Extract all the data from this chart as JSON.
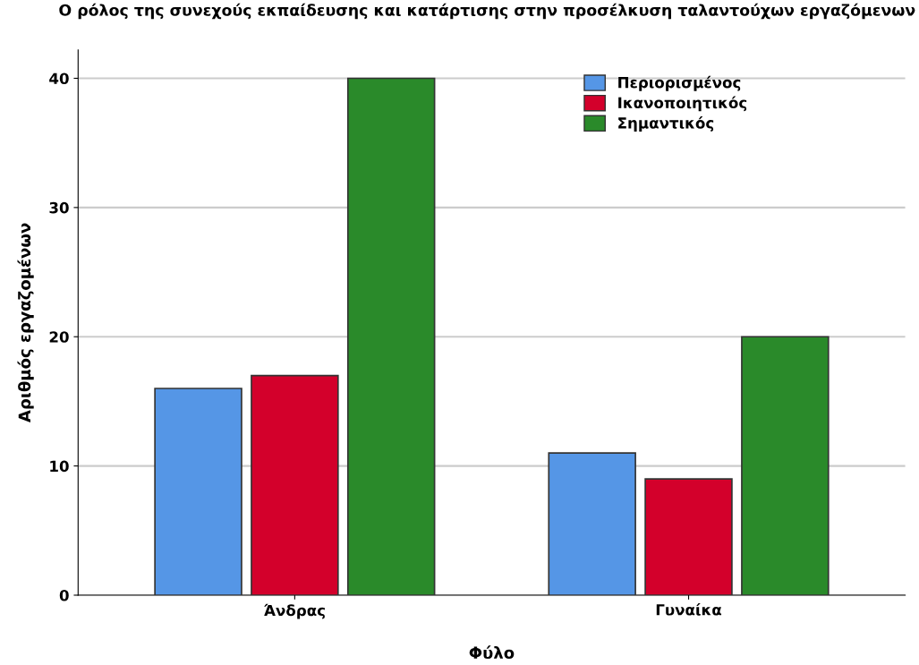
{
  "chart_data": {
    "type": "bar",
    "title": "Ο ρόλος της συνεχούς εκπαίδευσης και κατάρτισης στην προσέλκυση ταλαντούχων εργαζόμενων",
    "xlabel": "Φύλο",
    "ylabel": "Αριθμός εργαζομένων",
    "categories": [
      "Άνδρας",
      "Γυναίκα"
    ],
    "series": [
      {
        "name": "Περιορισμένος",
        "color": "#5596e6",
        "values": [
          16,
          11
        ]
      },
      {
        "name": "Ικανοποιητικός",
        "color": "#d3002b",
        "values": [
          17,
          9
        ]
      },
      {
        "name": "Σημαντικός",
        "color": "#2a8a2a",
        "values": [
          40,
          20
        ]
      }
    ],
    "ylim": [
      0,
      42.2
    ],
    "yticks": [
      0,
      10,
      20,
      30,
      40
    ],
    "grid": "y",
    "legend": "top right"
  }
}
